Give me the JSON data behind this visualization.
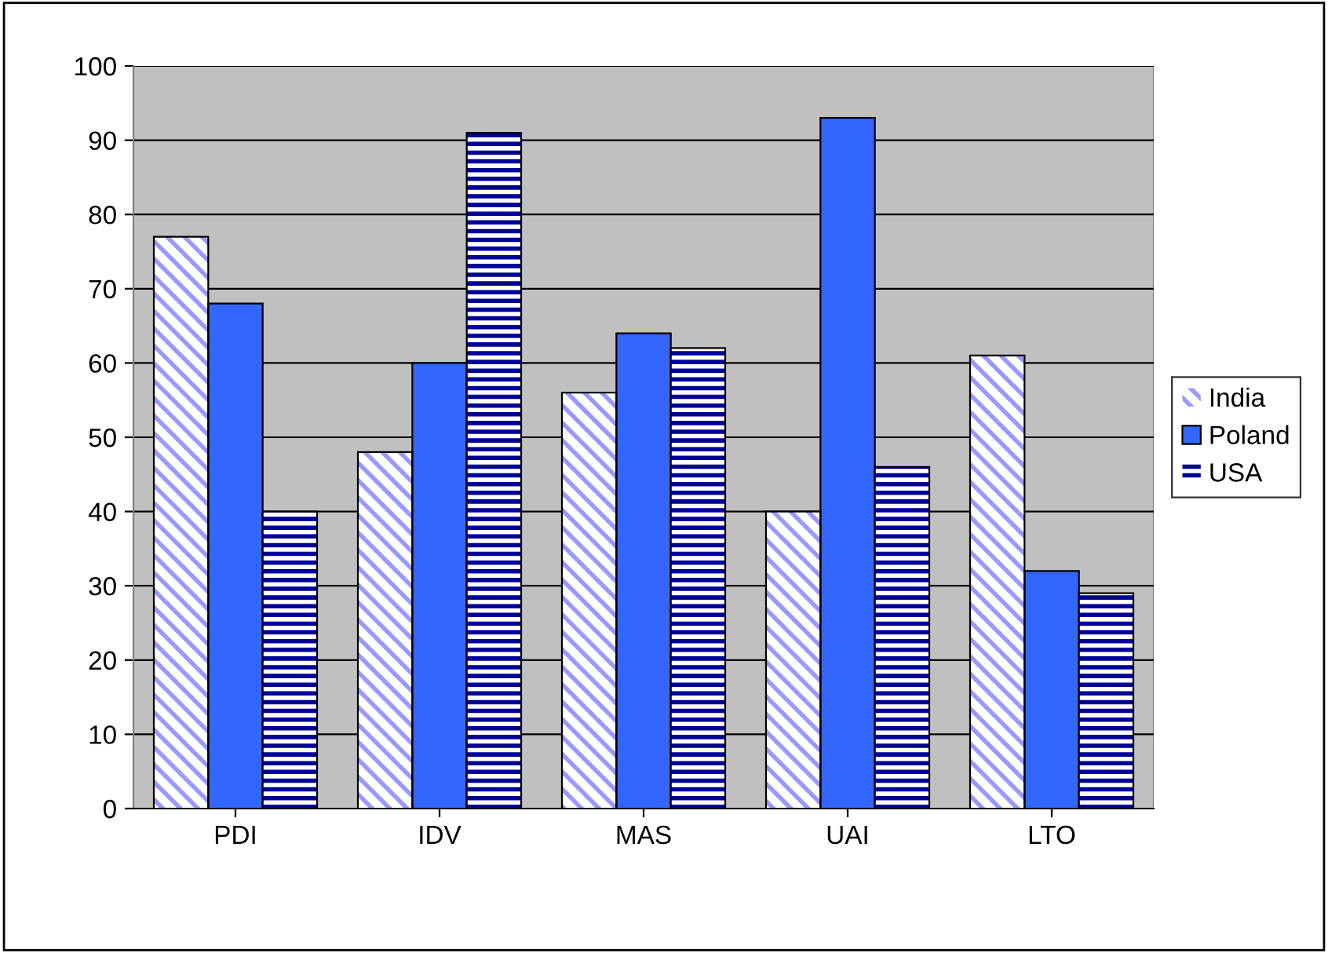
{
  "chart_data": {
    "type": "bar",
    "categories": [
      "PDI",
      "IDV",
      "MAS",
      "UAI",
      "LTO"
    ],
    "series": [
      {
        "name": "India",
        "color": "#9999ff",
        "values": [
          77,
          48,
          56,
          40,
          61
        ]
      },
      {
        "name": "Poland",
        "color": "#3366ff",
        "values": [
          68,
          60,
          64,
          93,
          32
        ]
      },
      {
        "name": "USA",
        "color": "#000099",
        "values": [
          40,
          91,
          62,
          46,
          29
        ]
      }
    ],
    "ylim": [
      0,
      100
    ],
    "yticks": [
      0,
      10,
      20,
      30,
      40,
      50,
      60,
      70,
      80,
      90,
      100
    ],
    "grid": "y",
    "legend": "right"
  }
}
